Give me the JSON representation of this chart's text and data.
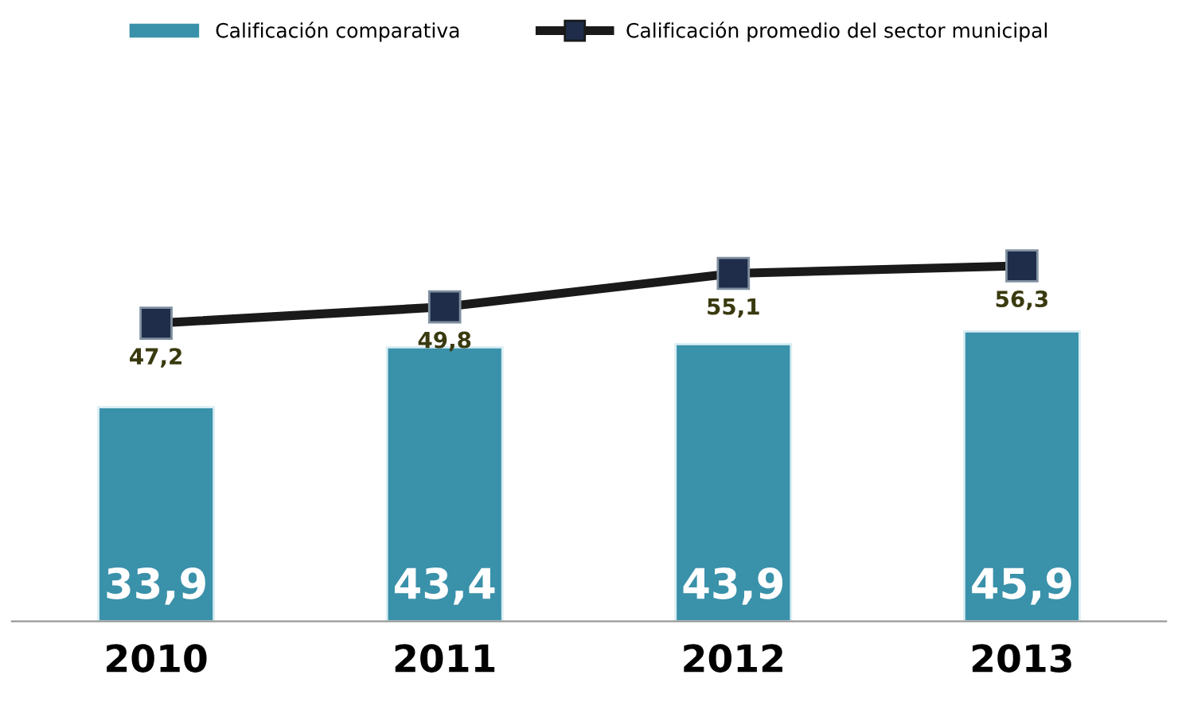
{
  "chart_data": {
    "type": "bar",
    "categories": [
      "2010",
      "2011",
      "2012",
      "2013"
    ],
    "series": [
      {
        "name": "Calificación comparativa",
        "color": "#3a91aa",
        "values": [
          33.9,
          43.4,
          43.9,
          45.9
        ],
        "value_labels": [
          "33,9",
          "43,4",
          "43,9",
          "45,9"
        ]
      },
      {
        "name": "Calificación promedio del sector municipal",
        "type": "line",
        "color": "#1a1a1a",
        "values": [
          47.2,
          49.8,
          55.1,
          56.3
        ],
        "value_labels": [
          "47,2",
          "49,8",
          "55,1",
          "56,3"
        ]
      }
    ],
    "legend": "top",
    "marker": "square"
  }
}
